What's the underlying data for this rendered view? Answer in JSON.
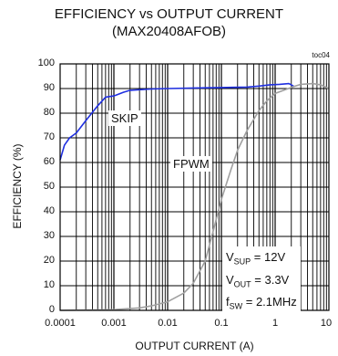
{
  "chart_data": {
    "type": "line",
    "title": "EFFICIENCY vs OUTPUT CURRENT",
    "subtitle": "(MAX20408AFOB)",
    "tag": "toc04",
    "xlabel": "OUTPUT CURRENT (A)",
    "ylabel": "EFFICIENCY (%)",
    "xscale": "log",
    "xlim": [
      0.0001,
      10
    ],
    "ylim": [
      0,
      100
    ],
    "x_ticks": [
      "0.0001",
      "0.001",
      "0.01",
      "0.1",
      "1",
      "10"
    ],
    "y_ticks": [
      "0",
      "10",
      "20",
      "30",
      "40",
      "50",
      "60",
      "70",
      "80",
      "90",
      "100"
    ],
    "grid": true,
    "series": [
      {
        "name": "SKIP",
        "color": "#1f2fe0",
        "points": [
          [
            0.0001,
            61
          ],
          [
            0.00012,
            67
          ],
          [
            0.00015,
            70
          ],
          [
            0.0002,
            72
          ],
          [
            0.0003,
            77
          ],
          [
            0.0005,
            83
          ],
          [
            0.0007,
            86.5
          ],
          [
            0.001,
            87
          ],
          [
            0.0015,
            88.5
          ],
          [
            0.002,
            89.3
          ],
          [
            0.005,
            89.8
          ],
          [
            0.01,
            90
          ],
          [
            0.05,
            90.3
          ],
          [
            0.1,
            90.4
          ],
          [
            0.3,
            90.6
          ],
          [
            0.5,
            91
          ],
          [
            0.8,
            91.5
          ],
          [
            1.2,
            91.7
          ],
          [
            1.8,
            92
          ],
          [
            2.2,
            91
          ]
        ]
      },
      {
        "name": "FPWM",
        "color": "#a0a0a0",
        "points": [
          [
            0.0001,
            0
          ],
          [
            0.001,
            0.3
          ],
          [
            0.003,
            1
          ],
          [
            0.005,
            1.8
          ],
          [
            0.01,
            3.5
          ],
          [
            0.02,
            7
          ],
          [
            0.03,
            11
          ],
          [
            0.05,
            20
          ],
          [
            0.07,
            32
          ],
          [
            0.1,
            45
          ],
          [
            0.15,
            57
          ],
          [
            0.2,
            65
          ],
          [
            0.3,
            73
          ],
          [
            0.5,
            81
          ],
          [
            0.7,
            85
          ],
          [
            1,
            88
          ],
          [
            2,
            90.5
          ],
          [
            3,
            91.7
          ],
          [
            5,
            92
          ],
          [
            7,
            91.5
          ],
          [
            10,
            90
          ]
        ]
      }
    ],
    "annotations": [
      {
        "text": "SKIP"
      },
      {
        "text": "FPWM"
      }
    ],
    "conditions": {
      "vsup": {
        "var": "V",
        "sub": "SUP",
        "value": " = 12V"
      },
      "vout": {
        "var": "V",
        "sub": "OUT",
        "value": " = 3.3V"
      },
      "fsw": {
        "var": "f",
        "sub": "SW",
        "value": " = 2.1MHz"
      }
    }
  }
}
